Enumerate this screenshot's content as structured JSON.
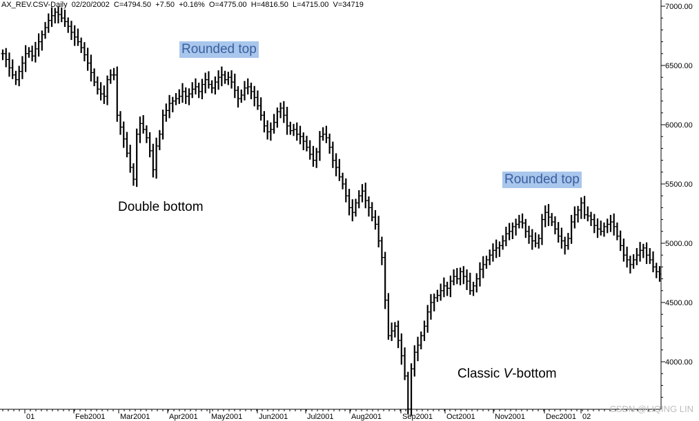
{
  "header": {
    "symbol": "AX_REV.CSV-Daily",
    "date": "02/20/2002",
    "close": "C=4794.50",
    "change": "+7.50",
    "change_pct": "+0.16%",
    "open": "O=4775.00",
    "high": "H=4816.50",
    "low": "L=4715.00",
    "volume": "V=34719"
  },
  "annotations": {
    "rounded_top_1": "Rounded top",
    "double_bottom": "Double bottom",
    "rounded_top_2": "Rounded top",
    "v_bottom_prefix": "Classic ",
    "v_bottom_italic": "V",
    "v_bottom_suffix": "-bottom"
  },
  "watermark": "CSDN @LIQING LIN",
  "chart_data": {
    "type": "ohlc-bar",
    "series_color": "#000000",
    "highlight_color": "#a9c6ec",
    "y_ticks": [
      "7000.00",
      "6500.00",
      "6000.00",
      "5500.00",
      "5000.00",
      "4500.00",
      "4000.00"
    ],
    "y_tick_values": [
      7000,
      6500,
      6000,
      5500,
      5000,
      4500,
      4000
    ],
    "ylim": [
      3600,
      7100
    ],
    "x_ticks": [
      "01",
      "Feb2001",
      "Mar2001",
      "Apr2001",
      "May2001",
      "Jun2001",
      "Jul2001",
      "Aug2001",
      "Sep2001",
      "Oct2001",
      "Nov2001",
      "Dec2001",
      "02"
    ],
    "key_points": [
      {
        "date": "2001-01",
        "value": 6600
      },
      {
        "date": "2001-02",
        "value": 6950
      },
      {
        "date": "2001-03",
        "value": 6300
      },
      {
        "date": "2001-03",
        "value": 5500,
        "label": "Double bottom"
      },
      {
        "date": "2001-05",
        "value": 6400,
        "label": "Rounded top"
      },
      {
        "date": "2001-06",
        "value": 6300
      },
      {
        "date": "2001-07",
        "value": 5900
      },
      {
        "date": "2001-08",
        "value": 5900
      },
      {
        "date": "2001-09",
        "value": 3600,
        "label": "Classic V-bottom"
      },
      {
        "date": "2001-10",
        "value": 4700
      },
      {
        "date": "2001-11",
        "value": 5000
      },
      {
        "date": "2001-12",
        "value": 5300,
        "label": "Rounded top"
      },
      {
        "date": "2002-01",
        "value": 5100
      },
      {
        "date": "2002-02",
        "value": 4750
      }
    ],
    "bars": [
      6600,
      6550,
      6480,
      6420,
      6380,
      6450,
      6520,
      6600,
      6620,
      6580,
      6640,
      6700,
      6760,
      6820,
      6880,
      6920,
      6950,
      6930,
      6900,
      6870,
      6830,
      6780,
      6740,
      6700,
      6650,
      6590,
      6520,
      6440,
      6360,
      6300,
      6260,
      6240,
      6380,
      6420,
      6420,
      6080,
      5980,
      5880,
      5760,
      5640,
      5540,
      5920,
      6010,
      5960,
      5890,
      5780,
      5620,
      5820,
      5920,
      6080,
      6120,
      6180,
      6200,
      6220,
      6240,
      6280,
      6240,
      6260,
      6300,
      6320,
      6280,
      6340,
      6380,
      6340,
      6310,
      6360,
      6400,
      6420,
      6380,
      6400,
      6360,
      6290,
      6220,
      6250,
      6310,
      6320,
      6280,
      6230,
      6160,
      6080,
      5990,
      5940,
      5960,
      6020,
      6110,
      6140,
      6080,
      5990,
      5950,
      5960,
      5920,
      5900,
      5860,
      5810,
      5750,
      5700,
      5770,
      5900,
      5920,
      5890,
      5810,
      5700,
      5640,
      5560,
      5500,
      5400,
      5300,
      5260,
      5340,
      5400,
      5440,
      5360,
      5300,
      5220,
      5160,
      5020,
      4880,
      4520,
      4220,
      4260,
      4300,
      4180,
      4050,
      3880,
      3600,
      3940,
      4080,
      4140,
      4220,
      4300,
      4420,
      4500,
      4540,
      4560,
      4600,
      4640,
      4620,
      4680,
      4720,
      4700,
      4760,
      4720,
      4680,
      4600,
      4640,
      4700,
      4780,
      4820,
      4860,
      4900,
      4940,
      4960,
      4980,
      5020,
      5080,
      5100,
      5140,
      5160,
      5180,
      5170,
      5100,
      5060,
      5020,
      5000,
      5040,
      5200,
      5260,
      5220,
      5180,
      5120,
      5060,
      5020,
      4980,
      5040,
      5180,
      5240,
      5280,
      5340,
      5240,
      5230,
      5200,
      5150,
      5120,
      5100,
      5140,
      5160,
      5180,
      5140,
      5060,
      4980,
      4900,
      4860,
      4820,
      4860,
      4900,
      4940,
      4960,
      4900,
      4860,
      4800,
      4760,
      4740
    ]
  }
}
